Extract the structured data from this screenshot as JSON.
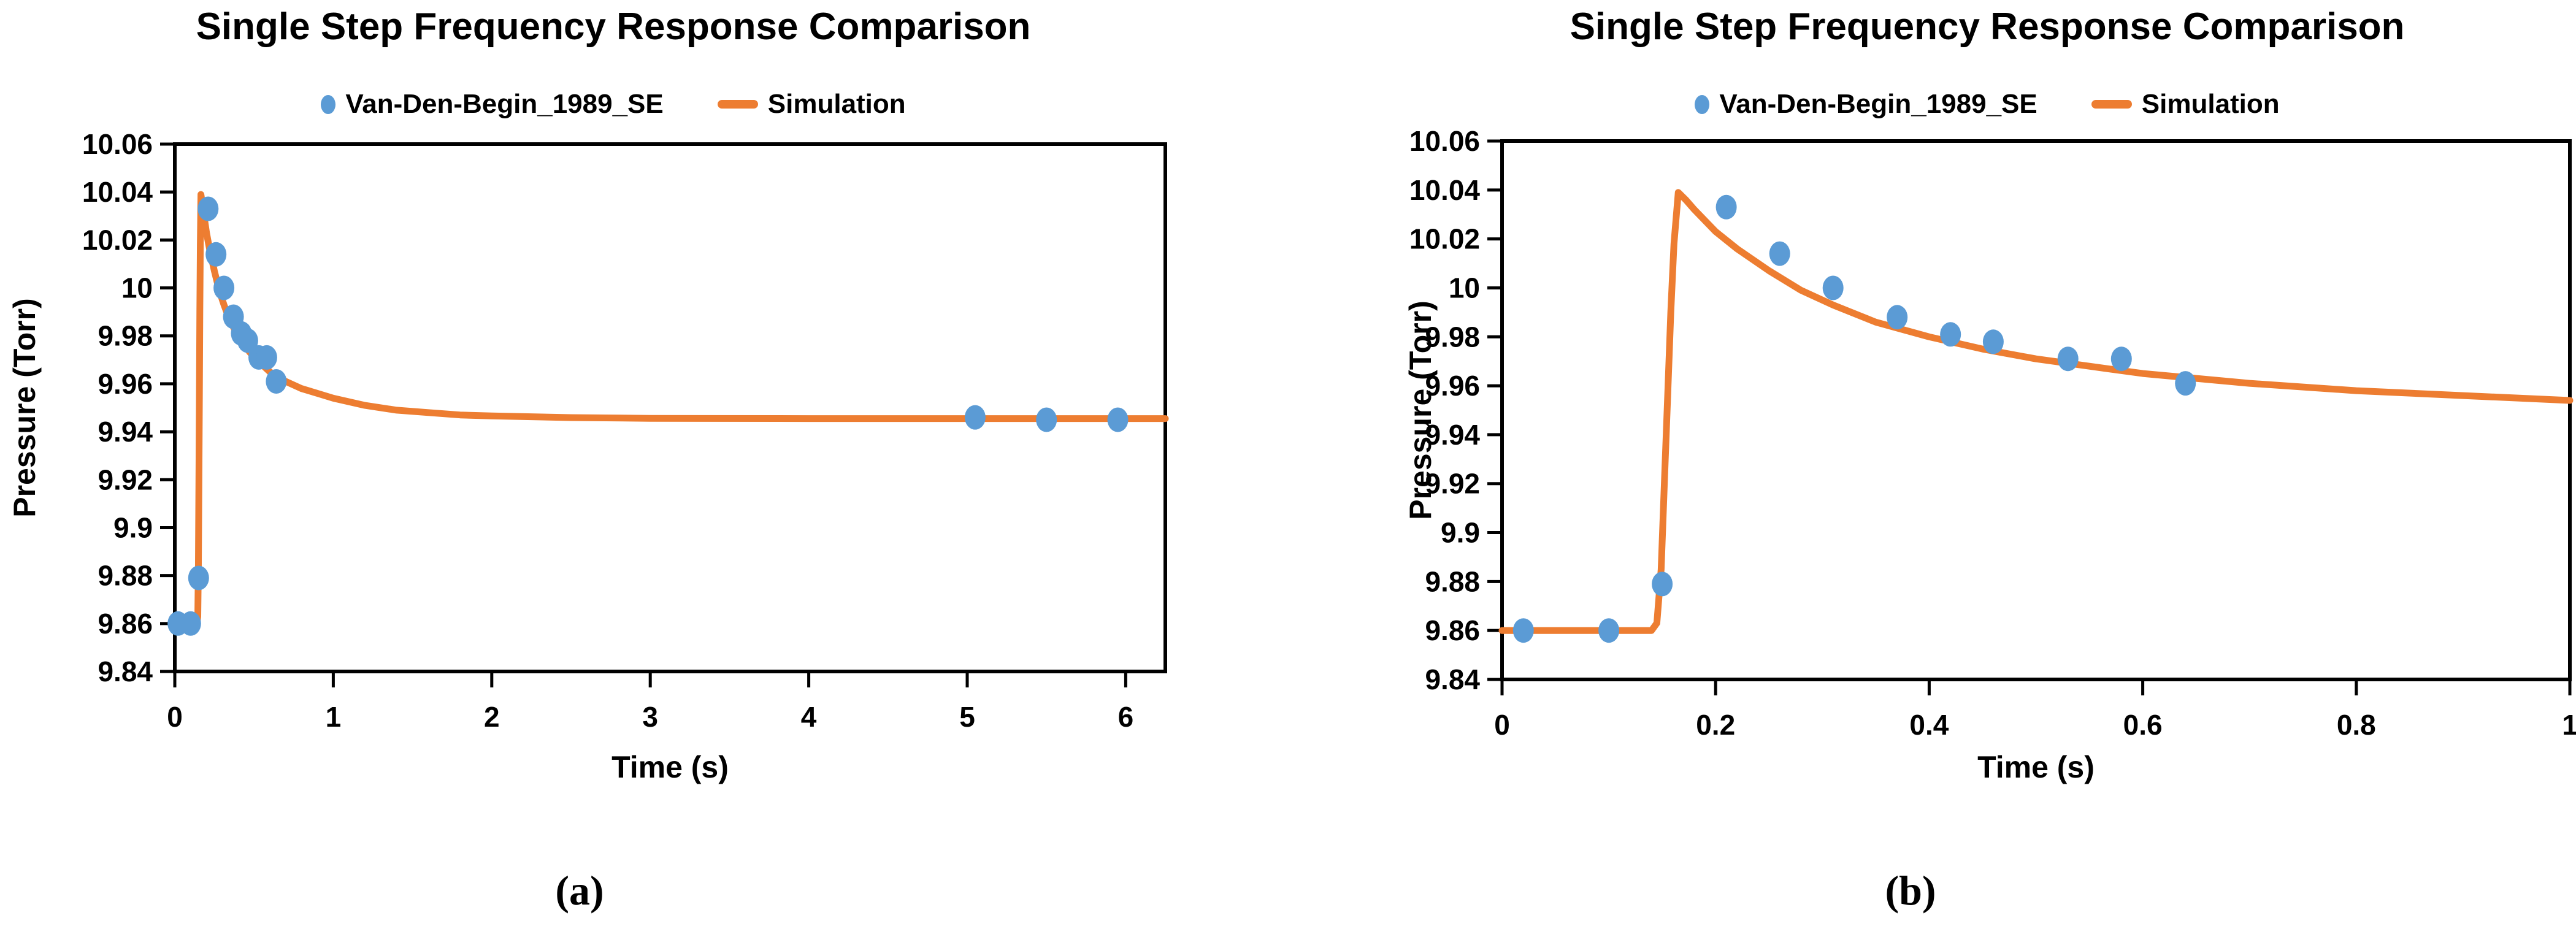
{
  "figure": {
    "background": "#ffffff",
    "captions": [
      "(a)",
      "(b)"
    ]
  },
  "colors": {
    "observed": "#5B9BD5",
    "simulation": "#ED7D31",
    "axis": "#000000",
    "text": "#000000"
  },
  "chart_data": [
    {
      "type": "scatter+line",
      "panel": "a",
      "title": "Single Step Frequency Response Comparison",
      "xlabel": "Time (s)",
      "ylabel": "Pressure (Torr)",
      "xlim": [
        0,
        6.25
      ],
      "ylim": [
        9.84,
        10.06
      ],
      "xticks": [
        0,
        1,
        2,
        3,
        4,
        5,
        6
      ],
      "yticks": [
        9.84,
        9.86,
        9.88,
        9.9,
        9.92,
        9.94,
        9.96,
        9.98,
        10,
        10.02,
        10.04,
        10.06
      ],
      "grid": false,
      "legend_position": "top-center",
      "series": [
        {
          "name": "Van-Den-Begin_1989_SE",
          "type": "scatter",
          "color": "#5B9BD5",
          "points": [
            [
              0.02,
              9.86
            ],
            [
              0.1,
              9.86
            ],
            [
              0.15,
              9.879
            ],
            [
              0.21,
              10.033
            ],
            [
              0.26,
              10.014
            ],
            [
              0.31,
              10.0
            ],
            [
              0.37,
              9.988
            ],
            [
              0.42,
              9.981
            ],
            [
              0.46,
              9.978
            ],
            [
              0.53,
              9.971
            ],
            [
              0.58,
              9.971
            ],
            [
              0.64,
              9.961
            ],
            [
              5.05,
              9.946
            ],
            [
              5.5,
              9.945
            ],
            [
              5.95,
              9.945
            ]
          ]
        },
        {
          "name": "Simulation",
          "type": "line",
          "color": "#ED7D31",
          "points": [
            [
              0,
              9.86
            ],
            [
              0.05,
              9.86
            ],
            [
              0.1,
              9.86
            ],
            [
              0.14,
              9.86
            ],
            [
              0.145,
              9.863
            ],
            [
              0.149,
              9.885
            ],
            [
              0.152,
              9.92
            ],
            [
              0.155,
              9.955
            ],
            [
              0.158,
              9.99
            ],
            [
              0.161,
              10.018
            ],
            [
              0.165,
              10.039
            ],
            [
              0.172,
              10.036
            ],
            [
              0.18,
              10.032
            ],
            [
              0.2,
              10.023
            ],
            [
              0.22,
              10.016
            ],
            [
              0.25,
              10.007
            ],
            [
              0.28,
              9.999
            ],
            [
              0.31,
              9.993
            ],
            [
              0.35,
              9.986
            ],
            [
              0.4,
              9.98
            ],
            [
              0.45,
              9.975
            ],
            [
              0.5,
              9.971
            ],
            [
              0.55,
              9.968
            ],
            [
              0.6,
              9.965
            ],
            [
              0.7,
              9.961
            ],
            [
              0.8,
              9.958
            ],
            [
              0.9,
              9.956
            ],
            [
              1.0,
              9.954
            ],
            [
              1.2,
              9.951
            ],
            [
              1.4,
              9.949
            ],
            [
              1.6,
              9.948
            ],
            [
              1.8,
              9.947
            ],
            [
              2.0,
              9.9466
            ],
            [
              2.5,
              9.9459
            ],
            [
              3.0,
              9.9456
            ],
            [
              4.0,
              9.9455
            ],
            [
              5.0,
              9.9455
            ],
            [
              6.0,
              9.9455
            ],
            [
              6.25,
              9.9455
            ]
          ]
        }
      ]
    },
    {
      "type": "scatter+line",
      "panel": "b",
      "title": "Single Step Frequency Response Comparison",
      "xlabel": "Time (s)",
      "ylabel": "Pressure (Torr)",
      "xlim": [
        0,
        1
      ],
      "ylim": [
        9.84,
        10.06
      ],
      "xticks": [
        0,
        0.2,
        0.4,
        0.6,
        0.8,
        1
      ],
      "yticks": [
        9.84,
        9.86,
        9.88,
        9.9,
        9.92,
        9.94,
        9.96,
        9.98,
        10,
        10.02,
        10.04,
        10.06
      ],
      "grid": false,
      "legend_position": "top-center",
      "series": [
        {
          "name": "Van-Den-Begin_1989_SE",
          "type": "scatter",
          "color": "#5B9BD5",
          "points": [
            [
              0.02,
              9.86
            ],
            [
              0.1,
              9.86
            ],
            [
              0.15,
              9.879
            ],
            [
              0.21,
              10.033
            ],
            [
              0.26,
              10.014
            ],
            [
              0.31,
              10.0
            ],
            [
              0.37,
              9.988
            ],
            [
              0.42,
              9.981
            ],
            [
              0.46,
              9.978
            ],
            [
              0.53,
              9.971
            ],
            [
              0.58,
              9.971
            ],
            [
              0.64,
              9.961
            ]
          ]
        },
        {
          "name": "Simulation",
          "type": "line",
          "color": "#ED7D31",
          "points": [
            [
              0,
              9.86
            ],
            [
              0.05,
              9.86
            ],
            [
              0.1,
              9.86
            ],
            [
              0.14,
              9.86
            ],
            [
              0.145,
              9.863
            ],
            [
              0.149,
              9.885
            ],
            [
              0.152,
              9.92
            ],
            [
              0.155,
              9.955
            ],
            [
              0.158,
              9.99
            ],
            [
              0.161,
              10.018
            ],
            [
              0.165,
              10.039
            ],
            [
              0.172,
              10.036
            ],
            [
              0.18,
              10.032
            ],
            [
              0.2,
              10.023
            ],
            [
              0.22,
              10.016
            ],
            [
              0.25,
              10.007
            ],
            [
              0.28,
              9.999
            ],
            [
              0.31,
              9.993
            ],
            [
              0.35,
              9.986
            ],
            [
              0.4,
              9.98
            ],
            [
              0.45,
              9.975
            ],
            [
              0.5,
              9.971
            ],
            [
              0.55,
              9.968
            ],
            [
              0.6,
              9.965
            ],
            [
              0.7,
              9.961
            ],
            [
              0.8,
              9.958
            ],
            [
              0.9,
              9.956
            ],
            [
              1.0,
              9.954
            ]
          ]
        }
      ]
    }
  ]
}
